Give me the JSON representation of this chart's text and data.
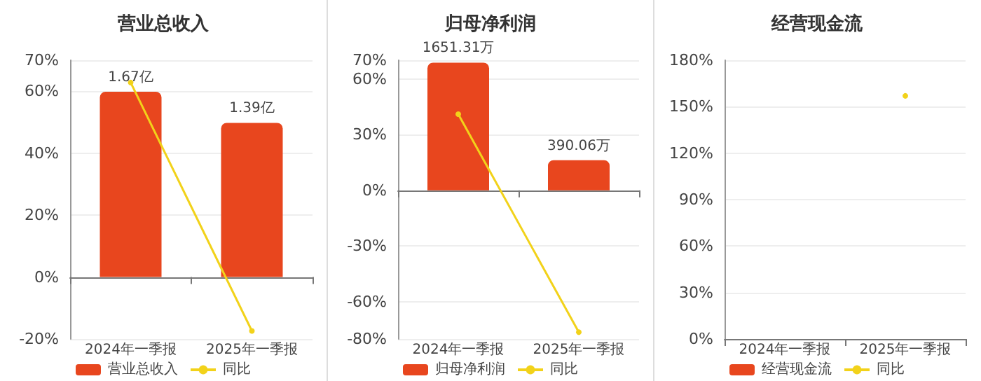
{
  "chart_data": [
    {
      "type": "bar",
      "title": "营业总收入",
      "categories": [
        "2024年一季报",
        "2025年一季报"
      ],
      "series": [
        {
          "name": "营业总收入",
          "axis": "y2",
          "color": "#e8461e",
          "values": [
            1.67,
            1.39
          ],
          "value_labels": [
            "1.67亿",
            "1.39亿"
          ]
        },
        {
          "name": "同比",
          "type": "line",
          "color": "#f2d21a",
          "values": [
            62.8,
            -17.4
          ]
        }
      ],
      "ylim": [
        -20,
        70
      ],
      "yticks": [
        {
          "value": -20,
          "label": "-20%"
        },
        {
          "value": 0,
          "label": "0%"
        },
        {
          "value": 20,
          "label": "20%"
        },
        {
          "value": 40,
          "label": "40%"
        },
        {
          "value": 60,
          "label": "60%"
        },
        {
          "value": 70,
          "label": "70%"
        }
      ],
      "y2lim": [
        -0.559,
        1.955
      ],
      "grid": "y",
      "legend": "bottom",
      "marker": "circle"
    },
    {
      "type": "bar",
      "title": "归母净利润",
      "categories": [
        "2024年一季报",
        "2025年一季报"
      ],
      "series": [
        {
          "name": "归母净利润",
          "axis": "y2",
          "color": "#e8461e",
          "values": [
            1651.31,
            390.06
          ],
          "value_labels": [
            "1651.31万",
            "390.06万"
          ]
        },
        {
          "name": "同比",
          "type": "line",
          "color": "#f2d21a",
          "values": [
            41,
            -76.3
          ]
        }
      ],
      "ylim": [
        -80,
        70
      ],
      "yticks": [
        {
          "value": -80,
          "label": "-80%"
        },
        {
          "value": -60,
          "label": "-60%"
        },
        {
          "value": -30,
          "label": "-30%"
        },
        {
          "value": 0,
          "label": "0%"
        },
        {
          "value": 30,
          "label": "30%"
        },
        {
          "value": 60,
          "label": "60%"
        },
        {
          "value": 70,
          "label": "70%"
        }
      ],
      "y2lim": [
        -1923,
        1683
      ],
      "grid": "y",
      "legend": "bottom",
      "marker": "circle"
    },
    {
      "type": "bar",
      "title": "经营现金流",
      "categories": [
        "2024年一季报",
        "2025年一季报"
      ],
      "series": [
        {
          "name": "经营现金流",
          "color": "#e8461e",
          "values": [
            null,
            null
          ]
        },
        {
          "name": "同比",
          "type": "line",
          "color": "#f2d21a",
          "values": [
            null,
            157
          ]
        }
      ],
      "ylim": [
        0,
        180
      ],
      "yticks": [
        {
          "value": 0,
          "label": "0%"
        },
        {
          "value": 30,
          "label": "30%"
        },
        {
          "value": 60,
          "label": "60%"
        },
        {
          "value": 90,
          "label": "90%"
        },
        {
          "value": 120,
          "label": "120%"
        },
        {
          "value": 150,
          "label": "150%"
        },
        {
          "value": 180,
          "label": "180%"
        }
      ],
      "grid": "y",
      "legend": "bottom",
      "marker": "circle"
    }
  ]
}
